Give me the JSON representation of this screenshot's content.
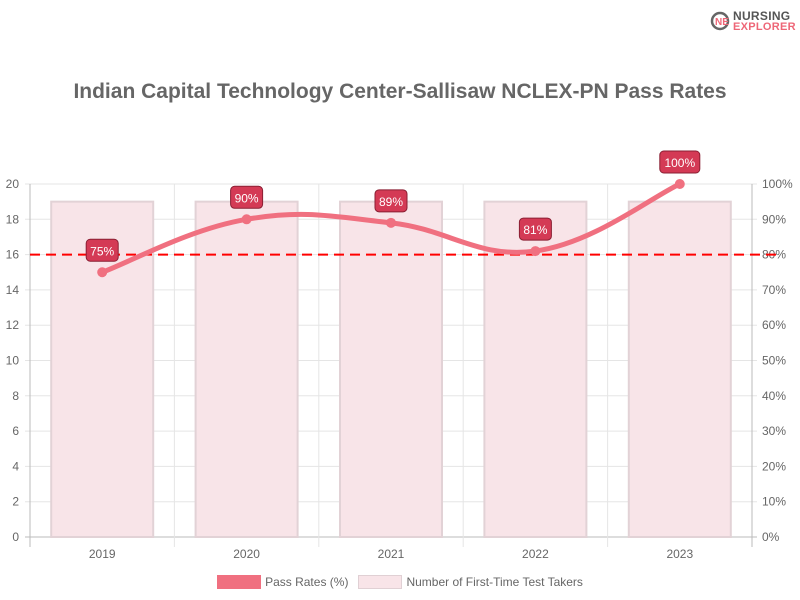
{
  "logo": {
    "line1": "NURSING",
    "line2": "EXPLORER"
  },
  "chart_data": {
    "type": "bar+line",
    "title": "Indian Capital Technology Center-Sallisaw NCLEX-PN Pass Rates",
    "categories": [
      "2019",
      "2020",
      "2021",
      "2022",
      "2023"
    ],
    "series": [
      {
        "name": "Pass Rates (%)",
        "type": "line",
        "axis": "right",
        "values": [
          75,
          90,
          89,
          81,
          100
        ],
        "labels": [
          "75%",
          "90%",
          "89%",
          "81%",
          "100%"
        ],
        "color": "#f07080"
      },
      {
        "name": "Number of First-Time Test Takers",
        "type": "bar",
        "axis": "left",
        "values": [
          19,
          19,
          19,
          19,
          19
        ],
        "color": "#f8e4e8"
      }
    ],
    "left_axis": {
      "range": [
        0,
        20
      ],
      "ticks": [
        "0",
        "2",
        "4",
        "6",
        "8",
        "10",
        "12",
        "14",
        "16",
        "18",
        "20"
      ]
    },
    "right_axis": {
      "range": [
        0,
        100
      ],
      "ticks": [
        "0%",
        "10%",
        "20%",
        "30%",
        "40%",
        "50%",
        "60%",
        "70%",
        "80%",
        "90%",
        "100%"
      ]
    },
    "reference_line": {
      "value": 80,
      "axis": "right",
      "style": "dashed",
      "color": "#ff0000"
    },
    "grid": true,
    "legend": "bottom"
  }
}
